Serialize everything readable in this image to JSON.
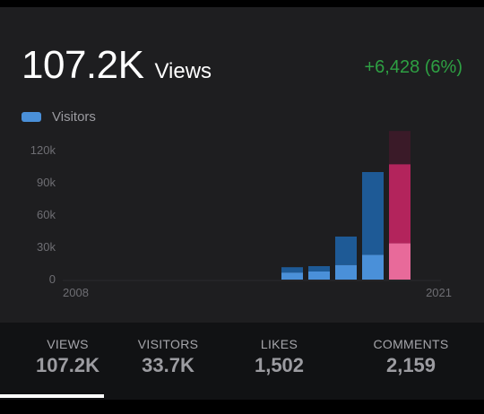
{
  "header": {
    "total_value": "107.2K",
    "total_unit": "Views",
    "delta": "+6,428 (6%)",
    "delta_color": "#2ea043"
  },
  "legend": {
    "label": "Visitors",
    "color": "#4a90d9"
  },
  "tabs": [
    {
      "label": "VIEWS",
      "value": "107.2K",
      "active": true
    },
    {
      "label": "VISITORS",
      "value": "33.7K",
      "active": false
    },
    {
      "label": "LIKES",
      "value": "1,502",
      "active": false
    },
    {
      "label": "COMMENTS",
      "value": "2,159",
      "active": false
    }
  ],
  "chart_data": {
    "type": "bar",
    "ylim": [
      0,
      140000
    ],
    "y_ticks": [
      0,
      30000,
      60000,
      90000,
      120000
    ],
    "y_tick_labels": [
      "0",
      "30k",
      "60k",
      "90k",
      "120k"
    ],
    "x_labels": [
      "2008",
      "2021"
    ],
    "legend_entries": [
      "Visitors"
    ],
    "grid": false,
    "bars": [
      {
        "visitors": 6500,
        "views": 11500,
        "extra": 0,
        "highlighted": false
      },
      {
        "visitors": 7500,
        "views": 12500,
        "extra": 0,
        "highlighted": false
      },
      {
        "visitors": 13500,
        "views": 40000,
        "extra": 0,
        "highlighted": false
      },
      {
        "visitors": 23000,
        "views": 100000,
        "extra": 0,
        "highlighted": false
      },
      {
        "visitors": 33700,
        "views": 107200,
        "extra": 31000,
        "highlighted": true
      }
    ],
    "colors": {
      "visitors": "#4a90d9",
      "views": "#1e5a96",
      "highlight_visitors": "#e86a9a",
      "highlight_views": "#b3245c",
      "highlight_extra": "#3a1a28"
    }
  }
}
